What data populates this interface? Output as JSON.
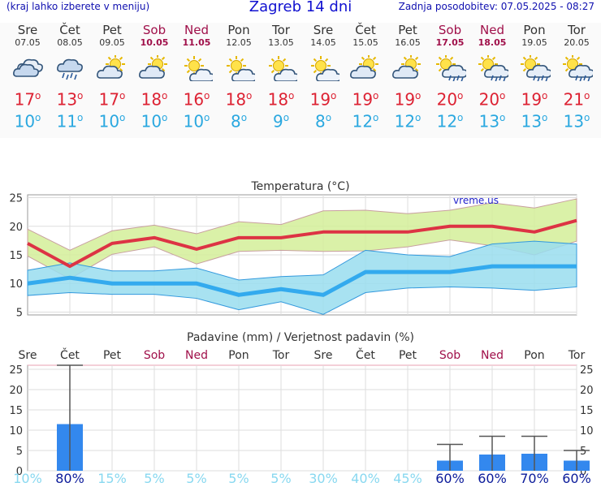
{
  "header": {
    "menu_note": "(kraj lahko izberete v meniju)",
    "title": "Zagreb 14 dni",
    "updated": "Zadnja posodobitev: 07.05.2025 - 08:27"
  },
  "days": [
    {
      "name": "Sre",
      "date": "07.05",
      "weekend": false,
      "icon": "cloudy-icon",
      "tmax": "17",
      "tmin": "10"
    },
    {
      "name": "Čet",
      "date": "08.05",
      "weekend": false,
      "icon": "rain-cloud-icon",
      "tmax": "13",
      "tmin": "11"
    },
    {
      "name": "Pet",
      "date": "09.05",
      "weekend": false,
      "icon": "partly-sunny-icon",
      "tmax": "17",
      "tmin": "10"
    },
    {
      "name": "Sob",
      "date": "10.05",
      "weekend": true,
      "icon": "partly-sunny-icon",
      "tmax": "18",
      "tmin": "10"
    },
    {
      "name": "Ned",
      "date": "11.05",
      "weekend": true,
      "icon": "sunny-cloud-icon",
      "tmax": "16",
      "tmin": "10"
    },
    {
      "name": "Pon",
      "date": "12.05",
      "weekend": false,
      "icon": "sunny-cloud-icon",
      "tmax": "18",
      "tmin": "8"
    },
    {
      "name": "Tor",
      "date": "13.05",
      "weekend": false,
      "icon": "sunny-cloud-icon",
      "tmax": "18",
      "tmin": "9"
    },
    {
      "name": "Sre",
      "date": "14.05",
      "weekend": false,
      "icon": "sunny-cloud-icon",
      "tmax": "19",
      "tmin": "8"
    },
    {
      "name": "Čet",
      "date": "15.05",
      "weekend": false,
      "icon": "partly-sunny-icon",
      "tmax": "19",
      "tmin": "12"
    },
    {
      "name": "Pet",
      "date": "16.05",
      "weekend": false,
      "icon": "partly-sunny-icon",
      "tmax": "19",
      "tmin": "12"
    },
    {
      "name": "Sob",
      "date": "17.05",
      "weekend": true,
      "icon": "sun-shower-icon",
      "tmax": "20",
      "tmin": "12"
    },
    {
      "name": "Ned",
      "date": "18.05",
      "weekend": true,
      "icon": "sun-shower-icon",
      "tmax": "20",
      "tmin": "13"
    },
    {
      "name": "Pon",
      "date": "19.05",
      "weekend": false,
      "icon": "sun-shower-icon",
      "tmax": "19",
      "tmin": "13"
    },
    {
      "name": "Tor",
      "date": "20.05",
      "weekend": false,
      "icon": "sun-shower-icon",
      "tmax": "21",
      "tmin": "13"
    }
  ],
  "chart_data": [
    {
      "type": "line",
      "title": "Temperatura (°C)",
      "watermark": "vreme.us",
      "ylim": [
        4.5,
        25.5
      ],
      "yticks": [
        5,
        10,
        15,
        20,
        25
      ],
      "grid": true,
      "x": [
        "Sre",
        "Čet",
        "Pet",
        "Sob",
        "Ned",
        "Pon",
        "Tor",
        "Sre",
        "Čet",
        "Pet",
        "Sob",
        "Ned",
        "Pon",
        "Tor"
      ],
      "series": [
        {
          "role": "max",
          "values": [
            17,
            13,
            17,
            18,
            16,
            18,
            18,
            19,
            19,
            19,
            20,
            20,
            19,
            21
          ]
        },
        {
          "role": "max-upper",
          "values": [
            19.5,
            15.8,
            19.2,
            20.2,
            18.7,
            20.8,
            20.3,
            22.7,
            22.8,
            22.2,
            22.8,
            24.1,
            23.2,
            24.8
          ]
        },
        {
          "role": "max-lower",
          "values": [
            14.8,
            10.8,
            15.1,
            16.4,
            13.4,
            15.6,
            15.8,
            15.6,
            15.7,
            16.4,
            17.6,
            16.6,
            15.0,
            17.4
          ]
        },
        {
          "role": "min",
          "values": [
            10,
            11,
            10,
            10,
            10,
            8,
            9,
            8,
            12,
            12,
            12,
            13,
            13,
            13
          ]
        },
        {
          "role": "min-upper",
          "values": [
            12.3,
            13.6,
            12.2,
            12.2,
            12.7,
            10.6,
            11.2,
            11.5,
            15.8,
            15.0,
            14.7,
            16.9,
            17.4,
            16.9
          ]
        },
        {
          "role": "min-lower",
          "values": [
            7.9,
            8.4,
            8.1,
            8.1,
            7.4,
            5.4,
            6.8,
            4.6,
            8.4,
            9.2,
            9.4,
            9.2,
            8.8,
            9.4
          ]
        }
      ],
      "colors": {
        "max": "#dd3344",
        "min": "#33aaee",
        "max_band": "#d4ee99",
        "min_band": "#99ddee",
        "overlap": "#88cc99"
      }
    },
    {
      "type": "bar",
      "title": "Padavine (mm) / Verjetnost padavin (%)",
      "ylim": [
        0,
        26
      ],
      "yticks": [
        0,
        5,
        10,
        15,
        20,
        25
      ],
      "categories": [
        "Sre",
        "Čet",
        "Pet",
        "Sob",
        "Ned",
        "Pon",
        "Tor",
        "Sre",
        "Čet",
        "Pet",
        "Sob",
        "Ned",
        "Pon",
        "Tor"
      ],
      "values": [
        0,
        11.5,
        0,
        0,
        0,
        0,
        0,
        0,
        0,
        0,
        2.5,
        4.0,
        4.2,
        2.5
      ],
      "error_max": [
        0,
        26,
        0,
        0,
        0,
        0,
        0,
        0,
        0,
        0,
        6.5,
        8.5,
        8.5,
        5.0
      ],
      "probabilities": [
        "10%",
        "80%",
        "15%",
        "5%",
        "5%",
        "5%",
        "5%",
        "30%",
        "40%",
        "45%",
        "60%",
        "60%",
        "70%",
        "60%"
      ],
      "colors": {
        "bar": "#3388ee",
        "whisker": "#555555",
        "prob_high": "#0a1a9a",
        "prob_low": "#88d8f0"
      }
    }
  ]
}
